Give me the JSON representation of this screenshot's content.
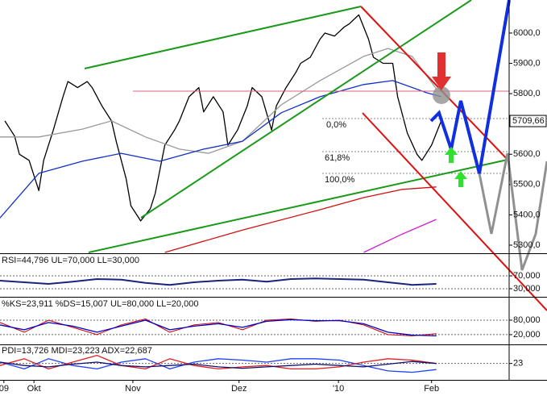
{
  "chart_data": [
    {
      "type": "line",
      "xlim": [
        0,
        105
      ],
      "ylim": [
        5276,
        6109
      ],
      "yticks": [
        {
          "value": 6000,
          "label": "6000,0"
        },
        {
          "value": 5900,
          "label": "5900,0"
        },
        {
          "value": 5800,
          "label": "5800,0"
        },
        {
          "value": 5600,
          "label": "5600,0"
        },
        {
          "value": 5500,
          "label": "5500,0"
        },
        {
          "value": 5400,
          "label": "5400,0"
        },
        {
          "value": 5300,
          "label": "5300,0"
        }
      ],
      "grid": false,
      "last_value": 5709.66,
      "last_label": "5709,66",
      "annotations": [
        "0,0%",
        "61,8%",
        "100,0%"
      ],
      "series": [
        {
          "color": "#000000",
          "x": [
            1,
            3,
            4,
            6,
            8,
            9,
            11,
            13,
            14,
            16,
            18,
            19,
            21,
            23,
            24,
            26,
            27,
            29,
            31,
            32,
            34,
            36,
            37,
            39,
            41,
            42,
            44,
            46,
            47,
            49,
            51,
            52,
            54,
            56,
            57,
            59,
            61,
            62,
            64,
            66,
            67,
            69,
            71,
            72,
            74,
            76,
            77,
            79,
            81,
            82,
            84,
            86,
            87,
            89,
            91
          ],
          "values": [
            5710,
            5660,
            5600,
            5580,
            5480,
            5580,
            5680,
            5790,
            5840,
            5820,
            5840,
            5820,
            5760,
            5710,
            5640,
            5520,
            5430,
            5380,
            5420,
            5470,
            5630,
            5680,
            5710,
            5790,
            5820,
            5740,
            5790,
            5740,
            5630,
            5680,
            5760,
            5820,
            5790,
            5680,
            5760,
            5820,
            5870,
            5900,
            5920,
            5980,
            6000,
            5990,
            6020,
            6030,
            6060,
            5980,
            5920,
            5900,
            5900,
            5790,
            5670,
            5600,
            5580,
            5630,
            5710
          ]
        },
        {
          "color": "#999999",
          "x": [
            0,
            8,
            17,
            23,
            30,
            37,
            43,
            50,
            58,
            66,
            75,
            80,
            85,
            90
          ],
          "values": [
            5657,
            5657,
            5683,
            5710,
            5657,
            5617,
            5603,
            5643,
            5763,
            5843,
            5923,
            5949,
            5923,
            5816
          ]
        },
        {
          "color": "#1030c8",
          "x": [
            0,
            8,
            17,
            25,
            33,
            42,
            50,
            58,
            66,
            75,
            81,
            88,
            91
          ],
          "values": [
            5390,
            5537,
            5577,
            5603,
            5577,
            5617,
            5643,
            5737,
            5790,
            5830,
            5843,
            5803,
            5790
          ]
        },
        {
          "color": "#d01010",
          "x": [
            34,
            50,
            66,
            75,
            83,
            90
          ],
          "values": [
            5276,
            5350,
            5417,
            5457,
            5484,
            5492
          ]
        },
        {
          "color": "#d020d0",
          "x": [
            75,
            83,
            90
          ],
          "values": [
            5276,
            5337,
            5385
          ]
        }
      ]
    },
    {
      "type": "line",
      "title": "RSI=44,796 UL=70,000 LL=30,000",
      "xlim": [
        0,
        105
      ],
      "ylim": [
        5,
        135
      ],
      "yticks": [
        {
          "value": 70,
          "label": "70,000"
        },
        {
          "value": 30,
          "label": "30,000"
        }
      ],
      "grid": true,
      "series": [
        {
          "color": "#1a237e",
          "x": [
            0,
            5,
            10,
            15,
            20,
            25,
            30,
            35,
            40,
            45,
            50,
            55,
            60,
            65,
            70,
            75,
            80,
            85,
            90
          ],
          "values": [
            55,
            50,
            45,
            52,
            60,
            58,
            48,
            42,
            50,
            55,
            58,
            52,
            60,
            62,
            60,
            58,
            50,
            42,
            45
          ]
        }
      ]
    },
    {
      "type": "line",
      "title": "%KS=23,911 %DS=15,007 UL=80,000 LL=20,000",
      "xlim": [
        0,
        105
      ],
      "ylim": [
        -17,
        170
      ],
      "yticks": [
        {
          "value": 80,
          "label": "80,000"
        },
        {
          "value": 20,
          "label": "20,000"
        }
      ],
      "grid": true,
      "series": [
        {
          "color": "#cc0000",
          "x": [
            0,
            5,
            10,
            15,
            20,
            25,
            30,
            35,
            40,
            45,
            50,
            55,
            60,
            65,
            70,
            75,
            80,
            85,
            90
          ],
          "values": [
            70,
            30,
            80,
            50,
            20,
            60,
            85,
            30,
            60,
            70,
            40,
            80,
            85,
            75,
            80,
            60,
            20,
            15,
            24
          ]
        },
        {
          "color": "#0000cc",
          "x": [
            0,
            5,
            10,
            15,
            20,
            25,
            30,
            35,
            40,
            45,
            50,
            55,
            60,
            65,
            70,
            75,
            80,
            85,
            90
          ],
          "values": [
            60,
            40,
            70,
            55,
            30,
            55,
            80,
            40,
            55,
            65,
            50,
            75,
            82,
            78,
            78,
            65,
            30,
            18,
            15
          ]
        }
      ]
    },
    {
      "type": "line",
      "title": "PDI=13,726 MDI=23,223 ADX=22,687",
      "xlim": [
        0,
        105
      ],
      "ylim": [
        0,
        50
      ],
      "yticks": [
        23
      ],
      "grid": true,
      "xticks": [
        {
          "value": 0.8,
          "label": "09"
        },
        {
          "value": 7,
          "label": "Okt"
        },
        {
          "value": 27.4,
          "label": "Nov"
        },
        {
          "value": 49.3,
          "label": "Dez"
        },
        {
          "value": 69.8,
          "label": "'10"
        },
        {
          "value": 89,
          "label": "Feb"
        }
      ],
      "series": [
        {
          "color": "#2040ff",
          "x": [
            0,
            5,
            10,
            15,
            20,
            25,
            30,
            35,
            40,
            45,
            50,
            55,
            60,
            65,
            70,
            75,
            80,
            85,
            90
          ],
          "values": [
            25,
            15,
            30,
            20,
            15,
            25,
            30,
            15,
            25,
            30,
            28,
            25,
            30,
            30,
            28,
            20,
            12,
            10,
            14
          ]
        },
        {
          "color": "#e02020",
          "x": [
            0,
            5,
            10,
            15,
            20,
            25,
            30,
            35,
            40,
            45,
            50,
            55,
            60,
            65,
            70,
            75,
            80,
            85,
            90
          ],
          "values": [
            20,
            30,
            15,
            25,
            35,
            20,
            15,
            30,
            20,
            15,
            18,
            20,
            15,
            15,
            18,
            25,
            30,
            28,
            23
          ]
        },
        {
          "color": "#101070",
          "x": [
            0,
            5,
            10,
            15,
            20,
            25,
            30,
            35,
            40,
            45,
            50,
            55,
            60,
            65,
            70,
            75,
            80,
            85,
            90
          ],
          "values": [
            25,
            20,
            18,
            22,
            25,
            20,
            18,
            20,
            22,
            18,
            16,
            18,
            20,
            22,
            20,
            18,
            22,
            26,
            23
          ]
        }
      ]
    }
  ]
}
